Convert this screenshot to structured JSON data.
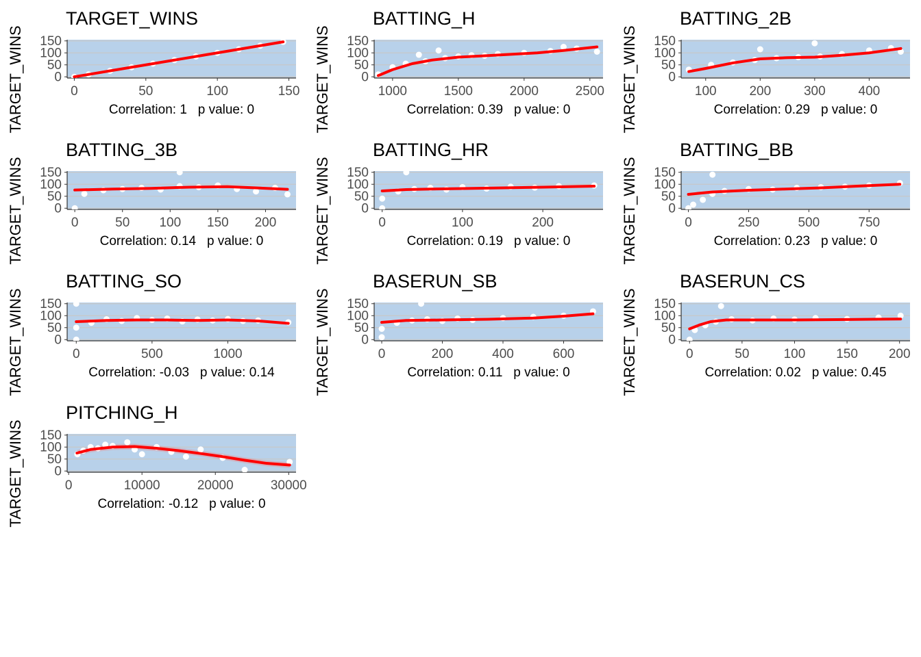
{
  "colors": {
    "panel_bg": "#B8D1EA",
    "grid": "#C7C7C7",
    "points": "#FFFFFF",
    "smooth_line": "#FF0000",
    "ribbon": "#F08080",
    "axis_text": "#4D4D4D",
    "title_text": "#000000"
  },
  "chart_data": [
    {
      "type": "scatter",
      "title": "TARGET_WINS",
      "ylabel": "TARGET_WINS",
      "xlim": [
        -5,
        155
      ],
      "ylim": [
        -5,
        155
      ],
      "xticks": [
        0,
        50,
        100,
        150
      ],
      "yticks": [
        0,
        50,
        100,
        150
      ],
      "caption": "Correlation: 1   p value: 0",
      "smooth": [
        [
          0,
          0
        ],
        [
          30,
          30
        ],
        [
          60,
          60
        ],
        [
          90,
          90
        ],
        [
          120,
          120
        ],
        [
          146,
          146
        ]
      ],
      "ribbon_width": 1,
      "points": [
        [
          0,
          0
        ],
        [
          10,
          10
        ],
        [
          25,
          25
        ],
        [
          40,
          40
        ],
        [
          55,
          55
        ],
        [
          70,
          70
        ],
        [
          85,
          85
        ],
        [
          100,
          100
        ],
        [
          115,
          115
        ],
        [
          130,
          130
        ],
        [
          146,
          146
        ]
      ]
    },
    {
      "type": "scatter",
      "title": "BATTING_H",
      "ylabel": "TARGET_WINS",
      "xlim": [
        860,
        2600
      ],
      "ylim": [
        -5,
        155
      ],
      "xticks": [
        1000,
        1500,
        2000,
        2500
      ],
      "yticks": [
        0,
        50,
        100,
        150
      ],
      "caption": "Correlation: 0.39   p value: 0",
      "smooth": [
        [
          891,
          5
        ],
        [
          1000,
          30
        ],
        [
          1150,
          55
        ],
        [
          1300,
          70
        ],
        [
          1500,
          82
        ],
        [
          1700,
          88
        ],
        [
          1900,
          94
        ],
        [
          2100,
          100
        ],
        [
          2300,
          110
        ],
        [
          2554,
          125
        ]
      ],
      "ribbon_width": 5,
      "points": [
        [
          891,
          10
        ],
        [
          1000,
          40
        ],
        [
          1100,
          55
        ],
        [
          1250,
          65
        ],
        [
          1400,
          78
        ],
        [
          1500,
          85
        ],
        [
          1600,
          90
        ],
        [
          1700,
          88
        ],
        [
          1800,
          95
        ],
        [
          2000,
          100
        ],
        [
          2200,
          108
        ],
        [
          2400,
          118
        ],
        [
          2554,
          105
        ],
        [
          1350,
          110
        ],
        [
          1200,
          92
        ],
        [
          2300,
          125
        ]
      ]
    },
    {
      "type": "scatter",
      "title": "BATTING_2B",
      "ylabel": "TARGET_WINS",
      "xlim": [
        55,
        475
      ],
      "ylim": [
        -5,
        155
      ],
      "xticks": [
        100,
        200,
        300,
        400
      ],
      "yticks": [
        0,
        50,
        100,
        150
      ],
      "caption": "Correlation: 0.29   p value: 0",
      "smooth": [
        [
          69,
          22
        ],
        [
          100,
          35
        ],
        [
          150,
          58
        ],
        [
          200,
          75
        ],
        [
          250,
          80
        ],
        [
          300,
          82
        ],
        [
          350,
          90
        ],
        [
          400,
          100
        ],
        [
          458,
          118
        ]
      ],
      "ribbon_width": 6,
      "points": [
        [
          69,
          30
        ],
        [
          110,
          50
        ],
        [
          150,
          60
        ],
        [
          190,
          70
        ],
        [
          230,
          78
        ],
        [
          270,
          82
        ],
        [
          310,
          85
        ],
        [
          350,
          95
        ],
        [
          400,
          110
        ],
        [
          440,
          120
        ],
        [
          458,
          105
        ],
        [
          200,
          115
        ],
        [
          300,
          140
        ]
      ]
    },
    {
      "type": "scatter",
      "title": "BATTING_3B",
      "ylabel": "TARGET_WINS",
      "xlim": [
        -8,
        232
      ],
      "ylim": [
        -5,
        155
      ],
      "xticks": [
        0,
        50,
        100,
        150,
        200
      ],
      "yticks": [
        0,
        50,
        100,
        150
      ],
      "caption": "Correlation: 0.14   p value: 0",
      "smooth": [
        [
          0,
          76
        ],
        [
          40,
          80
        ],
        [
          80,
          83
        ],
        [
          120,
          88
        ],
        [
          160,
          90
        ],
        [
          190,
          85
        ],
        [
          223,
          79
        ]
      ],
      "ribbon_width": 5,
      "points": [
        [
          0,
          0
        ],
        [
          10,
          60
        ],
        [
          30,
          75
        ],
        [
          50,
          80
        ],
        [
          70,
          85
        ],
        [
          90,
          78
        ],
        [
          110,
          92
        ],
        [
          130,
          88
        ],
        [
          150,
          95
        ],
        [
          170,
          80
        ],
        [
          190,
          70
        ],
        [
          210,
          85
        ],
        [
          223,
          58
        ],
        [
          110,
          150
        ]
      ]
    },
    {
      "type": "scatter",
      "title": "BATTING_HR",
      "ylabel": "TARGET_WINS",
      "xlim": [
        -10,
        275
      ],
      "ylim": [
        -5,
        155
      ],
      "xticks": [
        0,
        100,
        200
      ],
      "yticks": [
        0,
        50,
        100,
        150
      ],
      "caption": "Correlation: 0.19   p value: 0",
      "smooth": [
        [
          0,
          72
        ],
        [
          30,
          78
        ],
        [
          60,
          80
        ],
        [
          100,
          82
        ],
        [
          150,
          85
        ],
        [
          200,
          88
        ],
        [
          264,
          92
        ]
      ],
      "ribbon_width": 4,
      "points": [
        [
          0,
          0
        ],
        [
          0,
          40
        ],
        [
          20,
          70
        ],
        [
          40,
          80
        ],
        [
          60,
          85
        ],
        [
          80,
          78
        ],
        [
          100,
          88
        ],
        [
          130,
          82
        ],
        [
          160,
          90
        ],
        [
          190,
          86
        ],
        [
          220,
          92
        ],
        [
          264,
          95
        ],
        [
          30,
          150
        ]
      ]
    },
    {
      "type": "scatter",
      "title": "BATTING_BB",
      "ylabel": "TARGET_WINS",
      "xlim": [
        -30,
        920
      ],
      "ylim": [
        -5,
        155
      ],
      "xticks": [
        0,
        250,
        500,
        750
      ],
      "yticks": [
        0,
        50,
        100,
        150
      ],
      "caption": "Correlation: 0.23   p value: 0",
      "smooth": [
        [
          0,
          58
        ],
        [
          100,
          68
        ],
        [
          250,
          75
        ],
        [
          400,
          80
        ],
        [
          550,
          85
        ],
        [
          700,
          92
        ],
        [
          878,
          100
        ]
      ],
      "ribbon_width": 4,
      "points": [
        [
          0,
          0
        ],
        [
          20,
          15
        ],
        [
          60,
          35
        ],
        [
          100,
          60
        ],
        [
          150,
          72
        ],
        [
          250,
          80
        ],
        [
          350,
          78
        ],
        [
          450,
          85
        ],
        [
          550,
          88
        ],
        [
          650,
          90
        ],
        [
          750,
          95
        ],
        [
          878,
          105
        ],
        [
          100,
          140
        ]
      ]
    },
    {
      "type": "scatter",
      "title": "BATTING_SO",
      "ylabel": "TARGET_WINS",
      "xlim": [
        -60,
        1450
      ],
      "ylim": [
        -5,
        155
      ],
      "xticks": [
        0,
        500,
        1000
      ],
      "yticks": [
        0,
        50,
        100,
        150
      ],
      "caption": "Correlation: -0.03   p value: 0.14",
      "smooth": [
        [
          0,
          75
        ],
        [
          200,
          80
        ],
        [
          400,
          82
        ],
        [
          600,
          82
        ],
        [
          800,
          80
        ],
        [
          1000,
          82
        ],
        [
          1200,
          78
        ],
        [
          1399,
          68
        ]
      ],
      "ribbon_width": 5,
      "points": [
        [
          0,
          0
        ],
        [
          0,
          50
        ],
        [
          0,
          150
        ],
        [
          100,
          70
        ],
        [
          200,
          85
        ],
        [
          300,
          78
        ],
        [
          400,
          90
        ],
        [
          500,
          82
        ],
        [
          600,
          88
        ],
        [
          700,
          76
        ],
        [
          800,
          84
        ],
        [
          900,
          80
        ],
        [
          1000,
          86
        ],
        [
          1100,
          78
        ],
        [
          1200,
          80
        ],
        [
          1399,
          72
        ]
      ]
    },
    {
      "type": "scatter",
      "title": "BASERUN_SB",
      "ylabel": "TARGET_WINS",
      "xlim": [
        -25,
        730
      ],
      "ylim": [
        -5,
        155
      ],
      "xticks": [
        0,
        200,
        400,
        600
      ],
      "yticks": [
        0,
        50,
        100,
        150
      ],
      "caption": "Correlation: 0.11   p value: 0",
      "smooth": [
        [
          0,
          72
        ],
        [
          80,
          80
        ],
        [
          200,
          82
        ],
        [
          350,
          85
        ],
        [
          500,
          90
        ],
        [
          600,
          98
        ],
        [
          697,
          108
        ]
      ],
      "ribbon_width": 5,
      "points": [
        [
          0,
          10
        ],
        [
          0,
          45
        ],
        [
          50,
          70
        ],
        [
          100,
          80
        ],
        [
          150,
          85
        ],
        [
          200,
          78
        ],
        [
          250,
          88
        ],
        [
          300,
          82
        ],
        [
          400,
          90
        ],
        [
          500,
          95
        ],
        [
          600,
          100
        ],
        [
          697,
          118
        ],
        [
          130,
          150
        ]
      ]
    },
    {
      "type": "scatter",
      "title": "BASERUN_CS",
      "ylabel": "TARGET_WINS",
      "xlim": [
        -8,
        210
      ],
      "ylim": [
        -5,
        155
      ],
      "xticks": [
        0,
        50,
        100,
        150,
        200
      ],
      "yticks": [
        0,
        50,
        100,
        150
      ],
      "caption": "Correlation: 0.02   p value: 0.45",
      "smooth": [
        [
          0,
          45
        ],
        [
          10,
          62
        ],
        [
          20,
          75
        ],
        [
          35,
          82
        ],
        [
          60,
          82
        ],
        [
          100,
          82
        ],
        [
          150,
          84
        ],
        [
          201,
          86
        ]
      ],
      "ribbon_width": 5,
      "points": [
        [
          0,
          0
        ],
        [
          5,
          40
        ],
        [
          15,
          60
        ],
        [
          25,
          75
        ],
        [
          40,
          85
        ],
        [
          60,
          80
        ],
        [
          80,
          88
        ],
        [
          100,
          84
        ],
        [
          120,
          90
        ],
        [
          150,
          86
        ],
        [
          180,
          92
        ],
        [
          201,
          100
        ],
        [
          30,
          140
        ]
      ]
    },
    {
      "type": "scatter",
      "title": "PITCHING_H",
      "ylabel": "TARGET_WINS",
      "xlim": [
        -200,
        31000
      ],
      "ylim": [
        -5,
        155
      ],
      "xticks": [
        0,
        10000,
        20000,
        30000
      ],
      "yticks": [
        0,
        50,
        100,
        150
      ],
      "caption": "Correlation: -0.12   p value: 0",
      "smooth": [
        [
          1137,
          75
        ],
        [
          3000,
          90
        ],
        [
          6000,
          100
        ],
        [
          9000,
          102
        ],
        [
          12000,
          95
        ],
        [
          15000,
          85
        ],
        [
          18000,
          73
        ],
        [
          21000,
          60
        ],
        [
          24000,
          45
        ],
        [
          27000,
          32
        ],
        [
          30132,
          25
        ]
      ],
      "ribbon_width": 12,
      "points": [
        [
          1200,
          70
        ],
        [
          2000,
          85
        ],
        [
          3000,
          100
        ],
        [
          4000,
          95
        ],
        [
          5000,
          110
        ],
        [
          6000,
          105
        ],
        [
          8000,
          120
        ],
        [
          9000,
          90
        ],
        [
          10000,
          70
        ],
        [
          12000,
          100
        ],
        [
          14000,
          80
        ],
        [
          16000,
          60
        ],
        [
          18000,
          90
        ],
        [
          21000,
          55
        ],
        [
          24000,
          5
        ],
        [
          30132,
          38
        ]
      ]
    }
  ]
}
